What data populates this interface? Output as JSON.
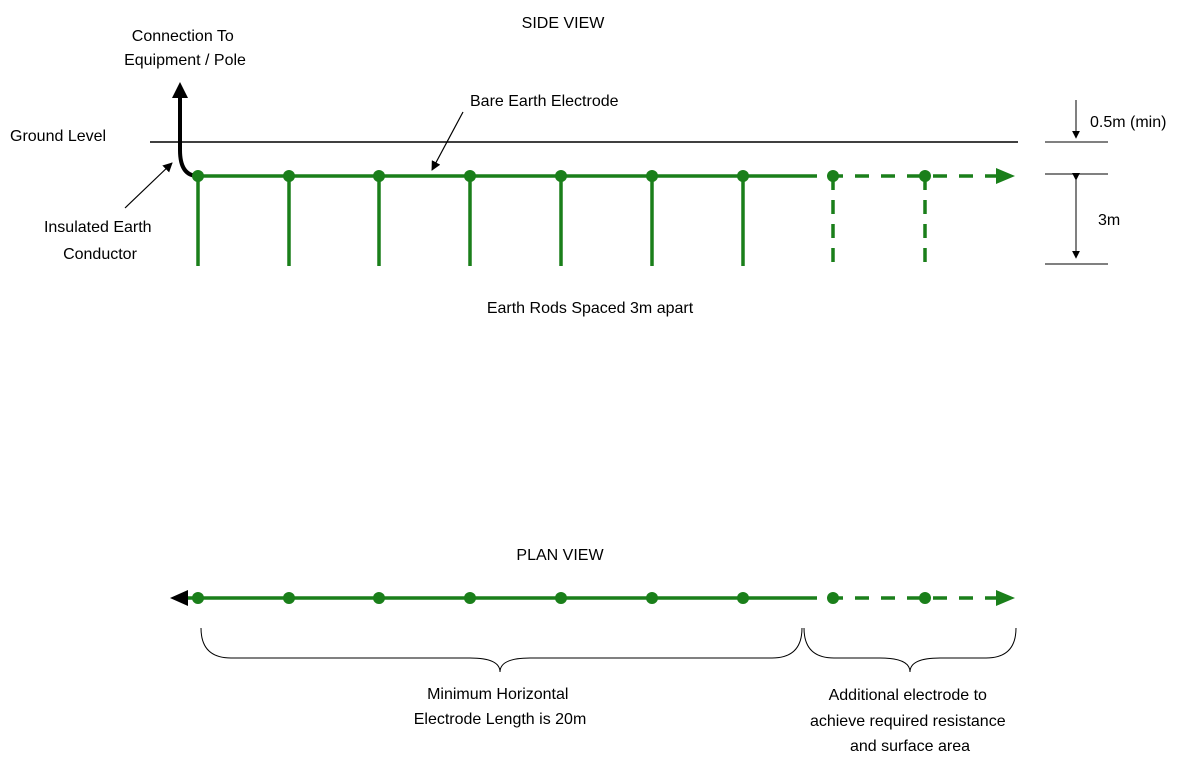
{
  "side_view": {
    "title": "SIDE VIEW",
    "connection_label": [
      "Connection To",
      "Equipment / Pole"
    ],
    "ground_level_label": "Ground Level",
    "bare_electrode_label": "Bare Earth Electrode",
    "insulated_conductor_label": [
      "Insulated Earth",
      "Conductor"
    ],
    "depth_label": "0.5m (min)",
    "rod_length_label": "3m",
    "rod_spacing_label": "Earth Rods Spaced 3m apart",
    "solid_rod_count": 7,
    "dashed_rod_count": 2
  },
  "plan_view": {
    "title": "PLAN VIEW",
    "min_length_label": [
      "Minimum Horizontal",
      "Electrode Length is 20m"
    ],
    "additional_label": [
      "Additional electrode to",
      "achieve required resistance",
      "and surface area"
    ],
    "solid_node_count": 7,
    "dashed_node_count": 2
  },
  "colors": {
    "electrode": "#1a7f1a",
    "conductor": "#000000",
    "line": "#000000"
  }
}
